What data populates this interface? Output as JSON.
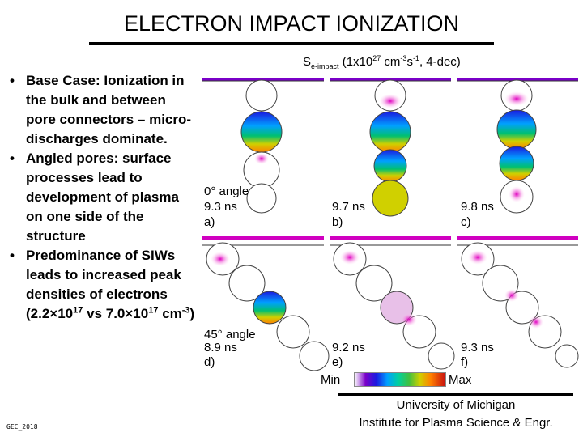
{
  "title": "ELECTRON IMPACT IONIZATION",
  "bullets": [
    {
      "text": "Base Case: Ionization in the bulk and between pore connectors – micro-discharges dominate."
    },
    {
      "text": "Angled pores: surface processes lead to development of plasma on one side of the structure"
    },
    {
      "pre": "Predominance of SIWs leads to increased peak densities of electrons (2.2×10",
      "sup1": "17",
      "mid": " vs 7.0×10",
      "sup2": "17",
      "mid2": " cm",
      "sup3": "-3",
      "post": ")"
    }
  ],
  "figure": {
    "heading_symbol": "S",
    "heading_sub": "e-impact",
    "heading_units_pre": " (1x10",
    "heading_exp1": "27",
    "heading_units_mid": " cm",
    "heading_exp2": "-3",
    "heading_units_s": "s",
    "heading_exp3": "-1",
    "heading_units_post": ", 4-dec)",
    "panels": [
      {
        "letter": "a)",
        "angle": "0° angle",
        "time": "9.3 ns"
      },
      {
        "letter": "b)",
        "time": "9.7 ns"
      },
      {
        "letter": "c)",
        "time": "9.8 ns"
      },
      {
        "letter": "d)",
        "angle": "45° angle",
        "time": "8.9 ns"
      },
      {
        "letter": "e)",
        "time": "9.2 ns"
      },
      {
        "letter": "f)",
        "time": "9.3 ns"
      }
    ],
    "colorbar": {
      "min": "Min",
      "max": "Max"
    }
  },
  "footer_left": "GEC_2018",
  "institution": {
    "line1": "University of Michigan",
    "line2": "Institute for Plasma Science & Engr."
  }
}
